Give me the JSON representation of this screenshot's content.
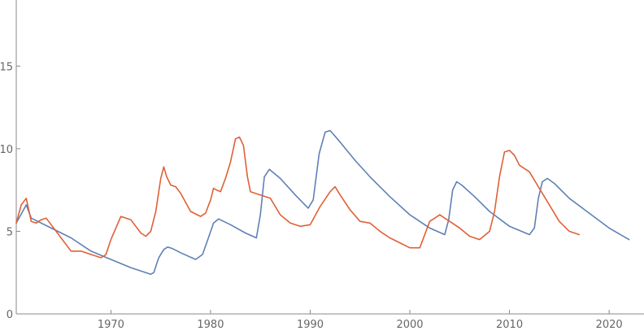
{
  "chart_data": {
    "type": "line",
    "title": "",
    "xlabel": "",
    "ylabel": "",
    "xlim": [
      1960.5,
      2023.5
    ],
    "ylim": [
      0,
      19
    ],
    "x_ticks": [
      1970,
      1980,
      1990,
      2000,
      2010,
      2020
    ],
    "y_ticks": [
      0,
      5,
      10,
      15
    ],
    "grid": false,
    "legend": "none",
    "series": [
      {
        "color": "#5e81b5",
        "x": [
          1960.5,
          1961.5,
          1962,
          1964,
          1966,
          1968,
          1970,
          1972,
          1974,
          1974.3,
          1974.8,
          1975.3,
          1975.7,
          1976.2,
          1977,
          1978.5,
          1979.2,
          1979.9,
          1980.3,
          1980.8,
          1982,
          1983.5,
          1984.6,
          1985.0,
          1985.4,
          1985.9,
          1987,
          1988.5,
          1989.8,
          1990.3,
          1990.9,
          1991.5,
          1992.0,
          1993,
          1994.5,
          1996,
          1998,
          2000,
          2002,
          2003.5,
          2003.9,
          2004.3,
          2004.7,
          2005.2,
          2006.5,
          2008,
          2010,
          2012,
          2012.5,
          2012.9,
          2013.3,
          2013.8,
          2014.5,
          2016,
          2018,
          2020,
          2022
        ],
        "y": [
          5.5,
          6.6,
          5.8,
          5.2,
          4.6,
          3.8,
          3.3,
          2.8,
          2.4,
          2.5,
          3.4,
          3.9,
          4.05,
          3.95,
          3.7,
          3.3,
          3.6,
          4.8,
          5.5,
          5.75,
          5.4,
          4.9,
          4.6,
          6.0,
          8.3,
          8.75,
          8.2,
          7.2,
          6.4,
          6.9,
          9.7,
          11.0,
          11.1,
          10.4,
          9.3,
          8.3,
          7.1,
          6.0,
          5.2,
          4.8,
          5.7,
          7.5,
          8.0,
          7.8,
          7.1,
          6.2,
          5.3,
          4.8,
          5.2,
          7.0,
          8.0,
          8.2,
          7.9,
          7.0,
          6.1,
          5.2,
          4.5
        ]
      },
      {
        "color": "#e06036",
        "x": [
          1960.5,
          1961,
          1961.5,
          1962,
          1962.5,
          1963,
          1963.5,
          1964,
          1965,
          1966,
          1967,
          1968,
          1969,
          1969.5,
          1970,
          1970.5,
          1971,
          1972,
          1973,
          1973.5,
          1974,
          1974.5,
          1975,
          1975.3,
          1975.6,
          1976,
          1976.5,
          1977,
          1978,
          1979,
          1979.5,
          1980,
          1980.3,
          1980.6,
          1981,
          1981.5,
          1982,
          1982.5,
          1982.9,
          1983.3,
          1983.7,
          1984,
          1985,
          1986,
          1987,
          1988,
          1989,
          1990,
          1991,
          1992,
          1992.5,
          1993,
          1994,
          1995,
          1996,
          1997,
          1998,
          1999,
          2000,
          2001,
          2002,
          2002.5,
          2003,
          2003.5,
          2004,
          2005,
          2006,
          2007,
          2008,
          2008.5,
          2009,
          2009.5,
          2010,
          2010.5,
          2011,
          2012,
          2013,
          2014,
          2015,
          2016,
          2017
        ],
        "y": [
          5.5,
          6.6,
          7.0,
          5.6,
          5.5,
          5.7,
          5.8,
          5.4,
          4.6,
          3.8,
          3.8,
          3.6,
          3.4,
          3.6,
          4.5,
          5.2,
          5.9,
          5.7,
          4.9,
          4.7,
          5.0,
          6.2,
          8.2,
          8.9,
          8.3,
          7.8,
          7.7,
          7.3,
          6.2,
          5.9,
          6.1,
          6.9,
          7.6,
          7.5,
          7.4,
          8.2,
          9.2,
          10.6,
          10.7,
          10.2,
          8.3,
          7.4,
          7.2,
          7.0,
          6.0,
          5.5,
          5.3,
          5.4,
          6.5,
          7.4,
          7.7,
          7.2,
          6.3,
          5.6,
          5.5,
          5.0,
          4.6,
          4.3,
          4.0,
          4.0,
          5.6,
          5.8,
          6.0,
          5.8,
          5.6,
          5.2,
          4.7,
          4.5,
          5.0,
          6.2,
          8.3,
          9.8,
          9.9,
          9.6,
          9.0,
          8.6,
          7.6,
          6.6,
          5.6,
          5.0,
          4.8
        ]
      }
    ]
  }
}
